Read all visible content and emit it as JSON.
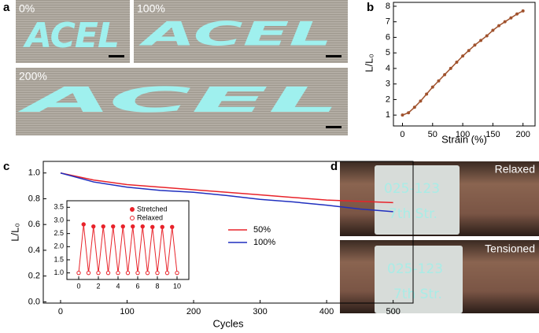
{
  "panels": [
    "a",
    "b",
    "c",
    "d"
  ],
  "photos_a": [
    {
      "strain": "0%",
      "text": "ACEL"
    },
    {
      "strain": "100%",
      "text": "ACEL"
    },
    {
      "strain": "200%",
      "text": "ACEL"
    }
  ],
  "photos_d": [
    {
      "state": "Relaxed",
      "line1": "025-123",
      "line2": "7th Str."
    },
    {
      "state": "Tensioned",
      "line1": "025-123",
      "line2": "7th Str."
    }
  ],
  "chart_data": [
    {
      "type": "line",
      "xlabel": "Strain (%)",
      "ylabel": "L/L₀",
      "markers": true,
      "x": [
        0,
        10,
        20,
        30,
        40,
        50,
        60,
        70,
        80,
        90,
        100,
        110,
        120,
        130,
        140,
        150,
        160,
        170,
        180,
        190,
        200
      ],
      "series": [
        {
          "name": null,
          "color": "#a0522d",
          "values": [
            1.0,
            1.15,
            1.5,
            1.9,
            2.35,
            2.8,
            3.2,
            3.6,
            4.0,
            4.4,
            4.8,
            5.15,
            5.5,
            5.8,
            6.1,
            6.45,
            6.75,
            7.0,
            7.25,
            7.5,
            7.7
          ]
        }
      ],
      "xlim": [
        -15,
        220
      ],
      "ylim": [
        0.3,
        8.25
      ],
      "xticks": [
        0,
        50,
        100,
        150,
        200
      ],
      "yticks": [
        1,
        2,
        3,
        4,
        5,
        6,
        7,
        8
      ]
    },
    {
      "type": "line",
      "xlabel": "Cycles",
      "ylabel": "L/L₀",
      "markers": false,
      "x": [
        0,
        50,
        100,
        150,
        200,
        250,
        300,
        350,
        400,
        450,
        500
      ],
      "series": [
        {
          "name": "50%",
          "color": "#e8232a",
          "values": [
            1.0,
            0.945,
            0.91,
            0.89,
            0.87,
            0.85,
            0.83,
            0.81,
            0.79,
            0.78,
            0.77
          ]
        },
        {
          "name": "100%",
          "color": "#1f2fbf",
          "values": [
            1.0,
            0.93,
            0.89,
            0.865,
            0.85,
            0.825,
            0.795,
            0.775,
            0.75,
            0.72,
            0.7
          ]
        }
      ],
      "xlim": [
        -26,
        530
      ],
      "ylim": [
        -0.01,
        1.09
      ],
      "xticks": [
        0,
        100,
        200,
        300,
        400,
        500
      ],
      "yticks": [
        {
          "value": 0,
          "label": "0.0"
        },
        0.2,
        0.4,
        0.6,
        0.8,
        {
          "value": 1,
          "label": "1.0"
        }
      ]
    },
    {
      "type": "zigzag",
      "color": "#e8232a",
      "series": [
        {
          "name": "Stretched",
          "x": [
            0.5,
            1.5,
            2.5,
            3.5,
            4.5,
            5.5,
            6.5,
            7.5,
            8.5,
            9.5
          ],
          "values": [
            2.85,
            2.77,
            2.77,
            2.77,
            2.77,
            2.77,
            2.77,
            2.75,
            2.75,
            2.75
          ],
          "filled": true
        },
        {
          "name": "Relaxed",
          "x": [
            0,
            1,
            2,
            3,
            4,
            5,
            6,
            7,
            8,
            9,
            10
          ],
          "values": [
            1,
            1,
            1,
            1,
            1,
            1,
            1,
            1,
            1,
            1,
            1
          ],
          "filled": false
        }
      ],
      "xlim": [
        -1.2,
        11.2
      ],
      "ylim": [
        0.75,
        3.75
      ],
      "xticks": [
        0,
        2,
        4,
        6,
        8,
        10
      ],
      "yticks": [
        {
          "value": 1,
          "label": "1.0"
        },
        1.5,
        {
          "value": 2,
          "label": "2.0"
        },
        2.5,
        {
          "value": 3,
          "label": "3.0"
        },
        3.5
      ]
    }
  ]
}
